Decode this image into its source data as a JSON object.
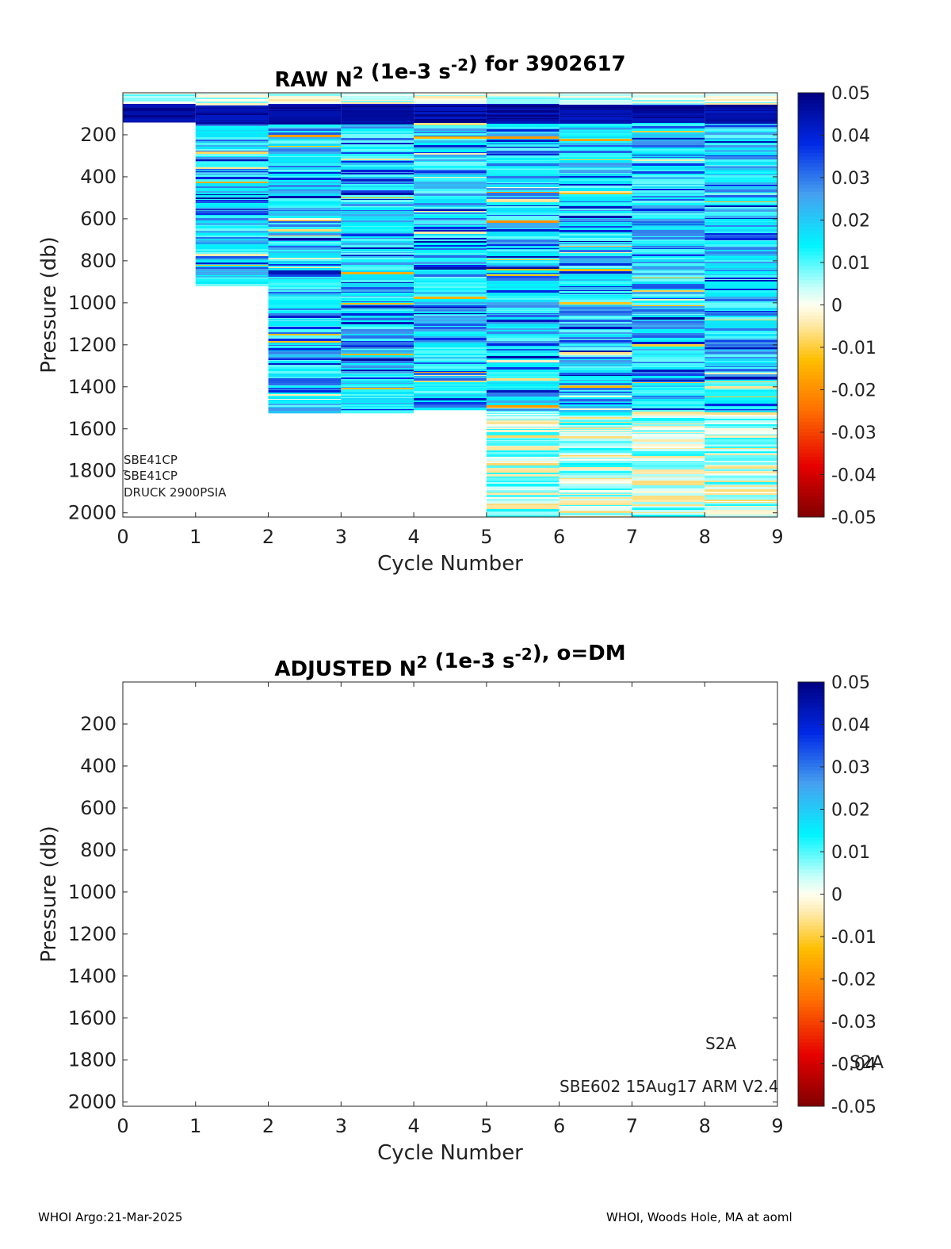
{
  "chart_data": [
    {
      "type": "heatmap",
      "title_parts": {
        "a": "RAW N",
        "sup1": "2",
        "b": " (1e-3 s",
        "sup2": "-2",
        "c": ") for 3902617"
      },
      "xlabel": "Cycle Number",
      "ylabel": "Pressure (db)",
      "xlim": [
        0,
        9
      ],
      "ylim": [
        0,
        2020
      ],
      "y_reversed": true,
      "xticks": [
        "0",
        "1",
        "2",
        "3",
        "4",
        "5",
        "6",
        "7",
        "8",
        "9"
      ],
      "yticks": [
        "200",
        "400",
        "600",
        "800",
        "1000",
        "1200",
        "1400",
        "1600",
        "1800",
        "2000"
      ],
      "colorbar": {
        "min": -0.05,
        "max": 0.05,
        "ticks": [
          "0.05",
          "0.04",
          "0.03",
          "0.02",
          "0.01",
          "0",
          "-0.01",
          "-0.02",
          "-0.03",
          "-0.04",
          "-0.05"
        ]
      },
      "profiles": [
        {
          "x0": 0,
          "x1": 1,
          "pmin": 0,
          "pmax": 140
        },
        {
          "x0": 1,
          "x1": 2,
          "pmin": 0,
          "pmax": 920
        },
        {
          "x0": 2,
          "x1": 3,
          "pmin": 0,
          "pmax": 1525
        },
        {
          "x0": 3,
          "x1": 4,
          "pmin": 0,
          "pmax": 1525
        },
        {
          "x0": 4,
          "x1": 5,
          "pmin": 0,
          "pmax": 1510
        },
        {
          "x0": 5,
          "x1": 6,
          "pmin": 0,
          "pmax": 2020
        },
        {
          "x0": 6,
          "x1": 7,
          "pmin": 0,
          "pmax": 2020
        },
        {
          "x0": 7,
          "x1": 8,
          "pmin": 0,
          "pmax": 2020
        },
        {
          "x0": 8,
          "x1": 9,
          "pmin": 0,
          "pmax": 2020
        }
      ],
      "annotations": [
        "SBE41CP",
        "SBE41CP",
        "DRUCK 2900PSIA"
      ]
    },
    {
      "type": "heatmap",
      "title_parts": {
        "a": "ADJUSTED N",
        "sup1": "2",
        "b": " (1e-3 s",
        "sup2": "-2",
        "c": "), o=DM"
      },
      "xlabel": "Cycle Number",
      "ylabel": "Pressure (db)",
      "xlim": [
        0,
        9
      ],
      "ylim": [
        0,
        2020
      ],
      "y_reversed": true,
      "xticks": [
        "0",
        "1",
        "2",
        "3",
        "4",
        "5",
        "6",
        "7",
        "8",
        "9"
      ],
      "yticks": [
        "200",
        "400",
        "600",
        "800",
        "1000",
        "1200",
        "1400",
        "1600",
        "1800",
        "2000"
      ],
      "colorbar": {
        "min": -0.05,
        "max": 0.05,
        "ticks": [
          "0.05",
          "0.04",
          "0.03",
          "0.02",
          "0.01",
          "0",
          "-0.01",
          "-0.02",
          "-0.03",
          "-0.04",
          "-0.05"
        ]
      },
      "profiles": [],
      "annotations": [
        "S2A",
        "SBE602 15Aug17 ARM V2.4",
        "S2A"
      ]
    }
  ],
  "footer": {
    "left": "WHOI Argo:21-Mar-2025",
    "right": "WHOI, Woods Hole, MA at aoml"
  }
}
